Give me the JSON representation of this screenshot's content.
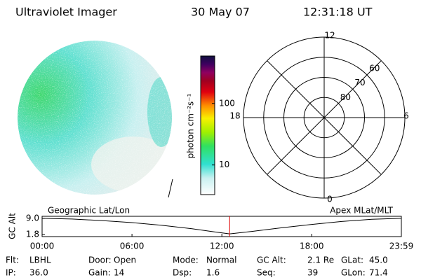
{
  "header": {
    "title": "Ultraviolet Imager",
    "date": "30 May 07",
    "time": "12:31:18 UT"
  },
  "colorbar": {
    "label": "photon cm⁻²s⁻¹",
    "log": true,
    "lim": [
      3.3,
      590
    ],
    "ticks": [
      10,
      100
    ]
  },
  "polar": {
    "latlim": [
      90,
      50
    ],
    "lat_ticks": [
      80,
      70,
      60
    ],
    "mlt_ticks": [
      0,
      6,
      12,
      18
    ]
  },
  "chart_data": {
    "type": "line",
    "ylabel": "GC Alt",
    "left_label": "Geographic Lat/Lon",
    "right_label": "Apex MLat/MLT",
    "xlim": [
      0,
      23.983
    ],
    "xticks": [
      {
        "value": 0,
        "label": "00:00"
      },
      {
        "value": 6,
        "label": "06:00"
      },
      {
        "value": 12,
        "label": "12:00"
      },
      {
        "value": 18,
        "label": "18:00"
      },
      {
        "value": 23.983,
        "label": "23:59"
      }
    ],
    "ylim": [
      0.9,
      9.9
    ],
    "yticks": [
      {
        "value": 9,
        "label": "9.0"
      },
      {
        "value": 1.8,
        "label": "1.8"
      }
    ],
    "x": [
      0,
      2,
      4,
      6,
      8,
      10,
      11.5,
      12.52,
      14,
      16,
      18,
      20,
      22,
      23.983
    ],
    "values": [
      9.0,
      8.7,
      8.0,
      7.1,
      5.9,
      4.4,
      3.0,
      2.1,
      3.2,
      4.8,
      6.3,
      7.6,
      8.6,
      9.0
    ],
    "color": "#000000",
    "current_hour": 12.52,
    "current_color": "#e00000"
  },
  "info": [
    [
      {
        "label": "Flt:",
        "value": "LBHL"
      },
      {
        "label": "Door:",
        "value": "Open"
      },
      {
        "label": "Mode:",
        "value": "Normal"
      },
      {
        "label": "GC Alt:",
        "value": "2.1 Re"
      },
      {
        "label": "GLat:",
        "value": "45.0"
      }
    ],
    [
      {
        "label": "IP:",
        "value": "36.0"
      },
      {
        "label": "Gain:",
        "value": "14"
      },
      {
        "label": "Dsp:",
        "value": "1.6"
      },
      {
        "label": "Seq:",
        "value": "39"
      },
      {
        "label": "GLon:",
        "value": "71.4"
      }
    ]
  ]
}
